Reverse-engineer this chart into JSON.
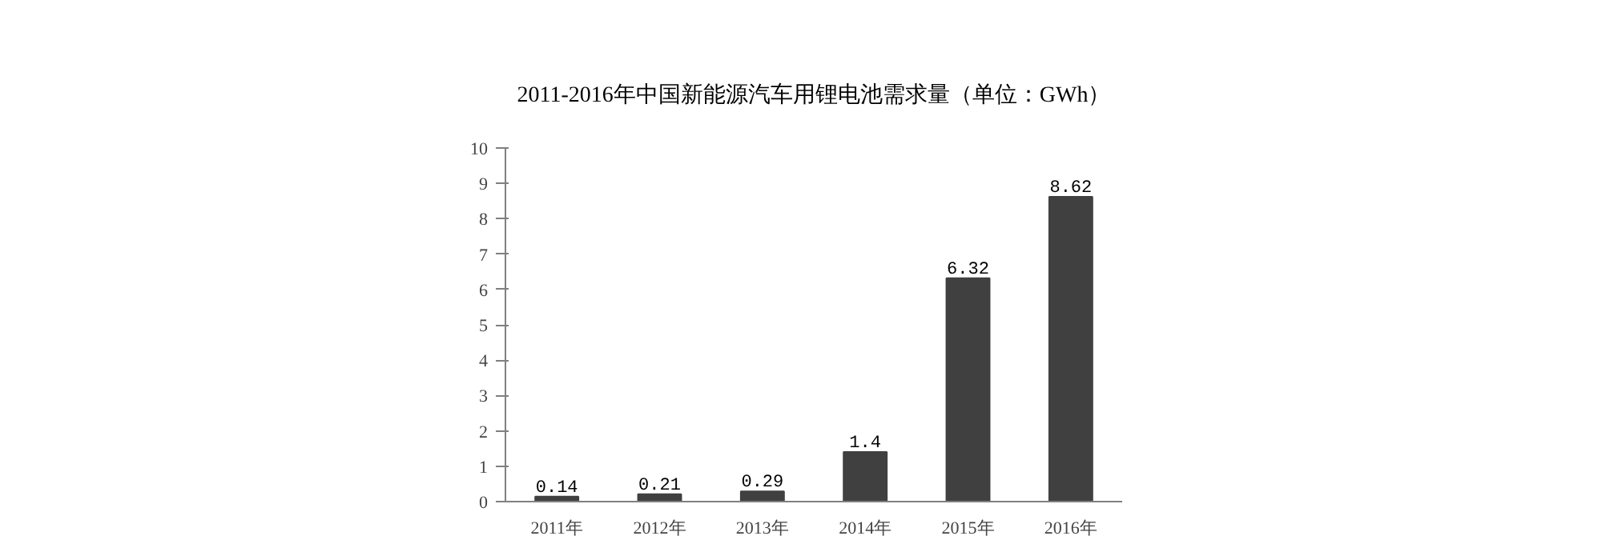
{
  "chart_data": {
    "type": "bar",
    "title": "2011-2016年中国新能源汽车用锂电池需求量（单位：GWh）",
    "categories": [
      "2011年",
      "2012年",
      "2013年",
      "2014年",
      "2015年",
      "2016年"
    ],
    "values": [
      0.14,
      0.21,
      0.29,
      1.4,
      6.32,
      8.62
    ],
    "color": "#404040",
    "ylim": [
      0,
      10
    ],
    "yticks": [
      0,
      1,
      2,
      3,
      4,
      5,
      6,
      7,
      8,
      9,
      10
    ],
    "data_labels": true,
    "grid": false
  }
}
